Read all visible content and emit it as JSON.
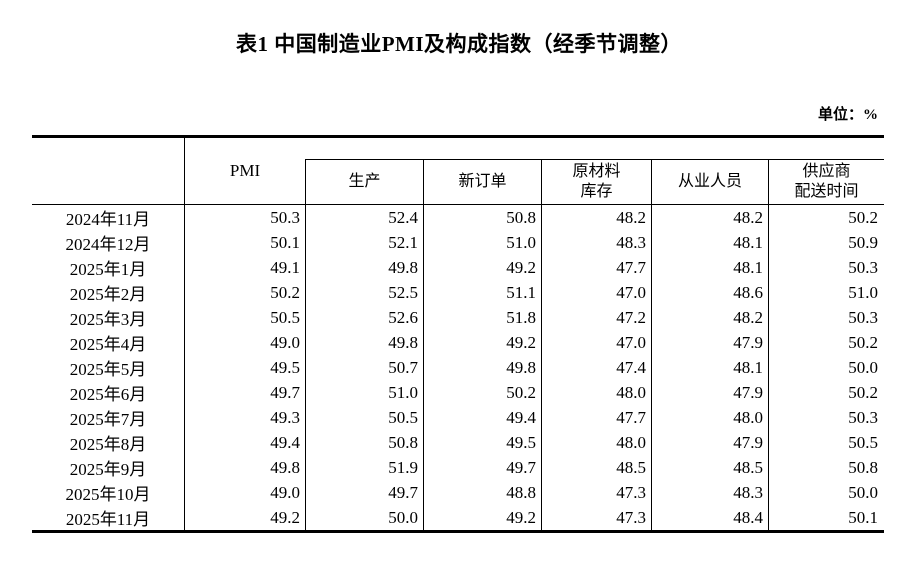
{
  "title": "表1 中国制造业PMI及构成指数（经季节调整）",
  "unit_label": "单位：%",
  "table": {
    "header": {
      "pmi": "PMI",
      "production": "生产",
      "new_orders": "新订单",
      "raw_materials_inventory": "原材料\n库存",
      "employment": "从业人员",
      "supplier_delivery_time": "供应商\n配送时间"
    },
    "rows": [
      {
        "month": "2024年11月",
        "values": [
          "50.3",
          "52.4",
          "50.8",
          "48.2",
          "48.2",
          "50.2"
        ]
      },
      {
        "month": "2024年12月",
        "values": [
          "50.1",
          "52.1",
          "51.0",
          "48.3",
          "48.1",
          "50.9"
        ]
      },
      {
        "month": "2025年1月",
        "values": [
          "49.1",
          "49.8",
          "49.2",
          "47.7",
          "48.1",
          "50.3"
        ]
      },
      {
        "month": "2025年2月",
        "values": [
          "50.2",
          "52.5",
          "51.1",
          "47.0",
          "48.6",
          "51.0"
        ]
      },
      {
        "month": "2025年3月",
        "values": [
          "50.5",
          "52.6",
          "51.8",
          "47.2",
          "48.2",
          "50.3"
        ]
      },
      {
        "month": "2025年4月",
        "values": [
          "49.0",
          "49.8",
          "49.2",
          "47.0",
          "47.9",
          "50.2"
        ]
      },
      {
        "month": "2025年5月",
        "values": [
          "49.5",
          "50.7",
          "49.8",
          "47.4",
          "48.1",
          "50.0"
        ]
      },
      {
        "month": "2025年6月",
        "values": [
          "49.7",
          "51.0",
          "50.2",
          "48.0",
          "47.9",
          "50.2"
        ]
      },
      {
        "month": "2025年7月",
        "values": [
          "49.3",
          "50.5",
          "49.4",
          "47.7",
          "48.0",
          "50.3"
        ]
      },
      {
        "month": "2025年8月",
        "values": [
          "49.4",
          "50.8",
          "49.5",
          "48.0",
          "47.9",
          "50.5"
        ]
      },
      {
        "month": "2025年9月",
        "values": [
          "49.8",
          "51.9",
          "49.7",
          "48.5",
          "48.5",
          "50.8"
        ]
      },
      {
        "month": "2025年10月",
        "values": [
          "49.0",
          "49.7",
          "48.8",
          "47.3",
          "48.3",
          "50.0"
        ]
      },
      {
        "month": "2025年11月",
        "values": [
          "49.2",
          "50.0",
          "49.2",
          "47.3",
          "48.4",
          "50.1"
        ]
      }
    ]
  },
  "chart_data": {
    "type": "table",
    "title": "表1 中国制造业PMI及构成指数（经季节调整）",
    "unit": "%",
    "categories": [
      "2024年11月",
      "2024年12月",
      "2025年1月",
      "2025年2月",
      "2025年3月",
      "2025年4月",
      "2025年5月",
      "2025年6月",
      "2025年7月",
      "2025年8月",
      "2025年9月",
      "2025年10月",
      "2025年11月"
    ],
    "series": [
      {
        "name": "PMI",
        "values": [
          50.3,
          50.1,
          49.1,
          50.2,
          50.5,
          49.0,
          49.5,
          49.7,
          49.3,
          49.4,
          49.8,
          49.0,
          49.2
        ]
      },
      {
        "name": "生产",
        "values": [
          52.4,
          52.1,
          49.8,
          52.5,
          52.6,
          49.8,
          50.7,
          51.0,
          50.5,
          50.8,
          51.9,
          49.7,
          50.0
        ]
      },
      {
        "name": "新订单",
        "values": [
          50.8,
          51.0,
          49.2,
          51.1,
          51.8,
          49.2,
          49.8,
          50.2,
          49.4,
          49.5,
          49.7,
          48.8,
          49.2
        ]
      },
      {
        "name": "原材料库存",
        "values": [
          48.2,
          48.3,
          47.7,
          47.0,
          47.2,
          47.0,
          47.4,
          48.0,
          47.7,
          48.0,
          48.5,
          47.3,
          47.3
        ]
      },
      {
        "name": "从业人员",
        "values": [
          48.2,
          48.1,
          48.1,
          48.6,
          48.2,
          47.9,
          48.1,
          47.9,
          48.0,
          47.9,
          48.5,
          48.3,
          48.4
        ]
      },
      {
        "name": "供应商配送时间",
        "values": [
          50.2,
          50.9,
          50.3,
          51.0,
          50.3,
          50.2,
          50.0,
          50.2,
          50.3,
          50.5,
          50.8,
          50.0,
          50.1
        ]
      }
    ]
  }
}
